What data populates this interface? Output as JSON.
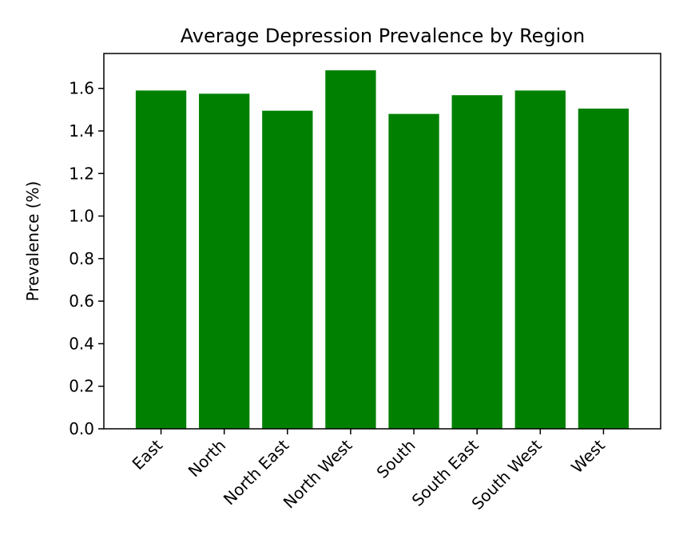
{
  "chart_data": {
    "type": "bar",
    "title": "Average Depression Prevalence by Region",
    "xlabel": "",
    "ylabel": "Prevalence (%)",
    "categories": [
      "East",
      "North",
      "North East",
      "North West",
      "South",
      "South East",
      "South West",
      "West"
    ],
    "values": [
      1.59,
      1.575,
      1.495,
      1.685,
      1.48,
      1.568,
      1.59,
      1.505
    ],
    "ylim": [
      0,
      1.764
    ],
    "yticks": [
      0.0,
      0.2,
      0.4,
      0.6,
      0.8,
      1.0,
      1.2,
      1.4,
      1.6
    ],
    "ytick_labels": [
      "0.0",
      "0.2",
      "0.4",
      "0.6",
      "0.8",
      "1.0",
      "1.2",
      "1.4",
      "1.6"
    ],
    "bar_color": "#008000",
    "grid": false,
    "xtick_rotation": 45
  }
}
